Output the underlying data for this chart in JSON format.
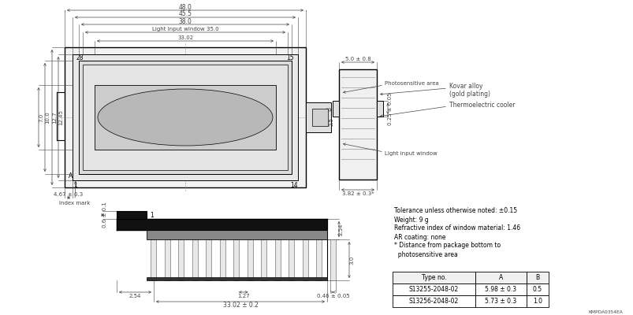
{
  "bg_color": "#ffffff",
  "line_color": "#000000",
  "dim_color": "#444444",
  "notes": [
    "Tolerance unless otherwise noted: ±0.15",
    "Weight: 9 g",
    "Refractive index of window material: 1.46",
    "AR coating: none",
    "* Distance from package bottom to",
    "  photosensitive area"
  ],
  "table_headers": [
    "Type no.",
    "A",
    "B"
  ],
  "table_rows": [
    [
      "S13255-2048-02",
      "5.98 ± 0.3",
      "0.5"
    ],
    [
      "S13256-2048-02",
      "5.73 ± 0.3",
      "1.0"
    ]
  ],
  "footer": "KMPDA0354EA",
  "fs": 5.0,
  "fn": 5.5,
  "fl": 6.0
}
